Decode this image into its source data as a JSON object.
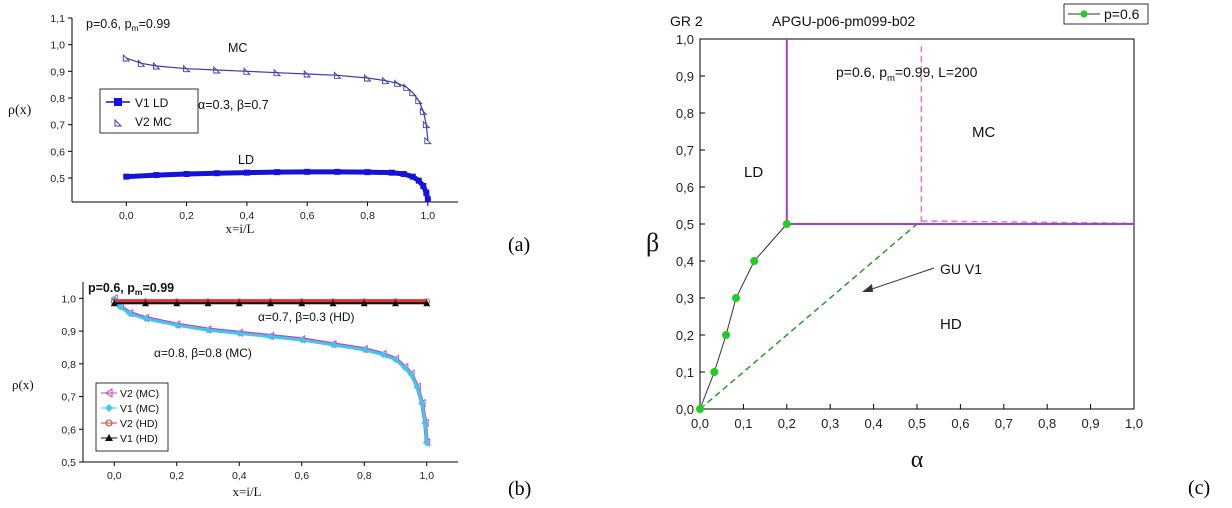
{
  "chart_data": [
    {
      "panel": "(a)",
      "type": "scatter",
      "xlabel": "x=i/L",
      "ylabel": "ρ(x)",
      "xlim": [
        -0.18,
        1.1
      ],
      "ylim": [
        0.41,
        1.1
      ],
      "xticks": [
        "0,0",
        "0,2",
        "0,4",
        "0,6",
        "0,8",
        "1,0"
      ],
      "yticks": [
        "0,5",
        "0,6",
        "0,7",
        "0,8",
        "0,9",
        "1,0",
        "1,1"
      ],
      "params_pre": "p=0.6, p",
      "params_sub": "m",
      "params_post": "=0.99",
      "param_ab": "α=0.3, β=0.7",
      "annotations": [
        "MC",
        "LD"
      ],
      "legend": [
        "V1  LD",
        "V2  MC"
      ],
      "series": [
        {
          "name": "V1  LD",
          "color": "#1414d8",
          "x": [
            0,
            0.1,
            0.2,
            0.3,
            0.4,
            0.5,
            0.6,
            0.7,
            0.8,
            0.88,
            0.92,
            0.95,
            0.97,
            0.985,
            0.995,
            1.0
          ],
          "y": [
            0.505,
            0.511,
            0.515,
            0.518,
            0.52,
            0.522,
            0.523,
            0.523,
            0.522,
            0.52,
            0.515,
            0.505,
            0.49,
            0.47,
            0.445,
            0.42
          ]
        },
        {
          "name": "V2  MC",
          "color": "#3a3ab0",
          "x": [
            0,
            0.05,
            0.1,
            0.2,
            0.3,
            0.4,
            0.5,
            0.6,
            0.7,
            0.8,
            0.86,
            0.9,
            0.93,
            0.95,
            0.97,
            0.985,
            0.995,
            1.0
          ],
          "y": [
            0.95,
            0.93,
            0.92,
            0.91,
            0.905,
            0.9,
            0.895,
            0.89,
            0.885,
            0.875,
            0.865,
            0.855,
            0.84,
            0.82,
            0.79,
            0.75,
            0.7,
            0.64
          ]
        }
      ]
    },
    {
      "panel": "(b)",
      "type": "scatter",
      "xlabel": "x=i/L",
      "ylabel": "ρ(x)",
      "xlim": [
        -0.1,
        1.1
      ],
      "ylim": [
        0.5,
        1.05
      ],
      "xticks": [
        "0,0",
        "0,2",
        "0,4",
        "0,6",
        "0,8",
        "1,0"
      ],
      "yticks": [
        "0,5",
        "0,6",
        "0,7",
        "0,8",
        "0,9",
        "1,0"
      ],
      "params_pre": "p=0.6, p",
      "params_sub": "m",
      "params_post": "=0.99",
      "annotations": [
        "α=0.7, β=0.3  (HD)",
        "α=0.8, β=0.8  (MC)"
      ],
      "legend": [
        "V2 (MC)",
        "V1 (MC)",
        "V2 (HD)",
        "V1 (HD)"
      ],
      "series": [
        {
          "name": "V2 (MC)",
          "color": "#c83cc8",
          "x": [
            0,
            0.02,
            0.05,
            0.1,
            0.2,
            0.3,
            0.4,
            0.5,
            0.6,
            0.7,
            0.8,
            0.86,
            0.9,
            0.93,
            0.95,
            0.97,
            0.985,
            0.995,
            1.0
          ],
          "y": [
            1.0,
            0.975,
            0.955,
            0.94,
            0.92,
            0.905,
            0.895,
            0.885,
            0.875,
            0.86,
            0.845,
            0.83,
            0.815,
            0.79,
            0.77,
            0.73,
            0.68,
            0.62,
            0.56
          ]
        },
        {
          "name": "V1 (MC)",
          "color": "#40c8e8",
          "x": [
            0,
            0.02,
            0.05,
            0.1,
            0.2,
            0.3,
            0.4,
            0.5,
            0.6,
            0.7,
            0.8,
            0.86,
            0.9,
            0.93,
            0.95,
            0.97,
            0.985,
            0.995,
            1.0
          ],
          "y": [
            0.998,
            0.973,
            0.953,
            0.938,
            0.918,
            0.903,
            0.893,
            0.883,
            0.873,
            0.858,
            0.843,
            0.828,
            0.813,
            0.788,
            0.768,
            0.728,
            0.678,
            0.618,
            0.558
          ]
        },
        {
          "name": "V2 (HD)",
          "color": "#d23a3a",
          "x": [
            0,
            0.1,
            0.2,
            0.3,
            0.4,
            0.5,
            0.6,
            0.7,
            0.8,
            0.9,
            1.0
          ],
          "y": [
            0.99,
            0.99,
            0.99,
            0.99,
            0.99,
            0.99,
            0.99,
            0.99,
            0.99,
            0.99,
            0.99
          ]
        },
        {
          "name": "V1 (HD)",
          "color": "#111111",
          "x": [
            0,
            0.1,
            0.2,
            0.3,
            0.4,
            0.5,
            0.6,
            0.7,
            0.8,
            0.9,
            1.0
          ],
          "y": [
            0.985,
            0.985,
            0.985,
            0.985,
            0.985,
            0.985,
            0.985,
            0.985,
            0.985,
            0.985,
            0.985
          ]
        }
      ]
    },
    {
      "panel": "(c)",
      "type": "line",
      "corner_label": "GR 2",
      "title": "APGU-p06-pm099-b02",
      "xlabel": "α",
      "ylabel": "β",
      "xlim": [
        0,
        1.0
      ],
      "ylim": [
        0,
        1.0
      ],
      "ticks": [
        "0,0",
        "0,1",
        "0,2",
        "0,3",
        "0,4",
        "0,5",
        "0,6",
        "0,7",
        "0,8",
        "0,9",
        "1,0"
      ],
      "params_pre": "p=0.6, p",
      "params_sub": "m",
      "params_post": "=0.99, L=200",
      "regions": [
        "MC",
        "LD",
        "HD"
      ],
      "arrow_label": "GU V1",
      "legend": [
        "p=0.6"
      ],
      "series": [
        {
          "name": "p=0.6",
          "color": "#22cc22",
          "x": [
            0.0,
            0.033,
            0.06,
            0.083,
            0.125,
            0.2
          ],
          "y": [
            0.0,
            0.1,
            0.2,
            0.3,
            0.4,
            0.5
          ]
        }
      ],
      "boundaries": {
        "solid_vertical": {
          "x": 0.2,
          "y": [
            0.5,
            1.0
          ]
        },
        "solid_horizontal": {
          "y": 0.5,
          "x": [
            0.2,
            1.0
          ]
        },
        "dashed_vertical": {
          "x": 0.51,
          "y": [
            0.505,
            0.98
          ]
        },
        "dashed_horizontal": {
          "x": [
            0.51,
            1.0
          ],
          "y": [
            0.508,
            0.502
          ]
        },
        "green_dashed": {
          "x": [
            0.0,
            0.5
          ],
          "y": [
            0.0,
            0.5
          ]
        },
        "color_boundary": "#a040c8",
        "color_dashed": "#e070e0"
      }
    }
  ]
}
